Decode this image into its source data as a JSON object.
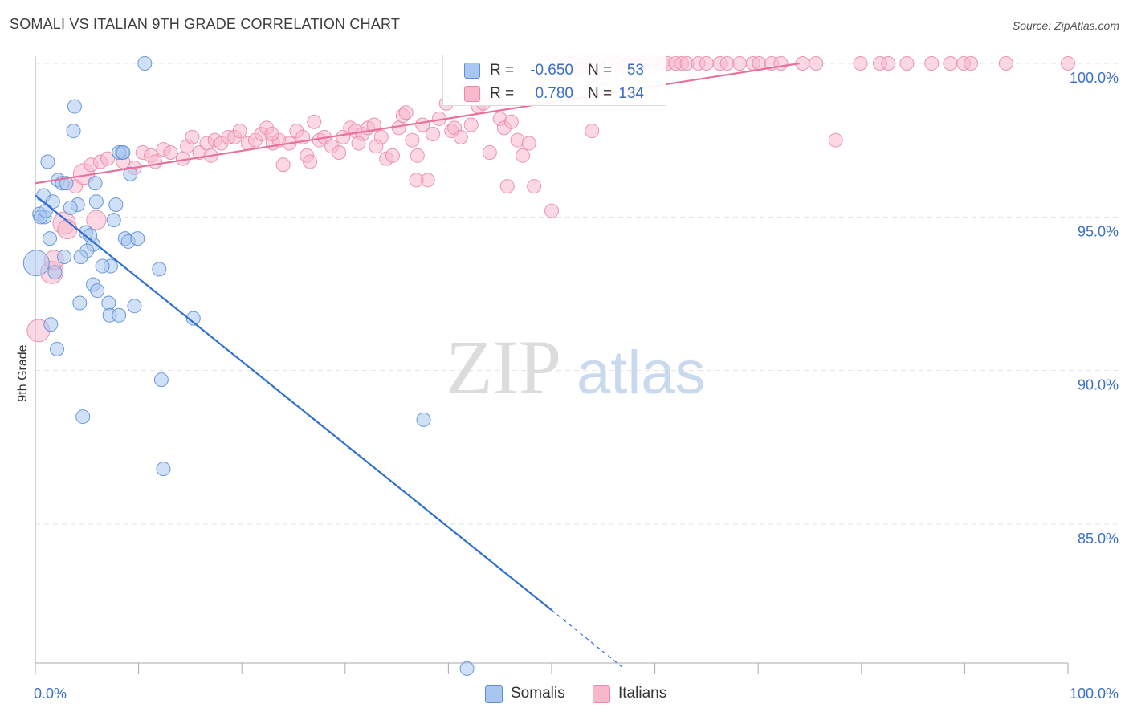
{
  "title": "SOMALI VS ITALIAN 9TH GRADE CORRELATION CHART",
  "source": "Source: ZipAtlas.com",
  "watermark": {
    "zip": "ZIP",
    "atlas": "atlas"
  },
  "legend": {
    "rows": [
      {
        "r_label": "R =",
        "r_value": "-0.650",
        "n_label": "N =",
        "n_value": "53"
      },
      {
        "r_label": "R =",
        "r_value": "0.780",
        "n_label": "N =",
        "n_value": "134"
      }
    ],
    "bottom": [
      {
        "label": "Somalis"
      },
      {
        "label": "Italians"
      }
    ]
  },
  "colors": {
    "somali_fill": "#a9c6f0",
    "somali_stroke": "#5b8fd6",
    "somali_line": "#2f6fd0",
    "italian_fill": "#f7b8cc",
    "italian_stroke": "#e98aa8",
    "italian_line": "#e8709a",
    "tick_label": "#3b6fc4",
    "grid": "#e2e2e2"
  },
  "chart_data": {
    "type": "scatter",
    "title": "SOMALI VS ITALIAN 9TH GRADE CORRELATION CHART",
    "xlabel": "",
    "ylabel": "9th Grade",
    "xlim": [
      0,
      100
    ],
    "ylim": [
      80.3,
      100.6
    ],
    "x_tick_labels": [
      "0.0%",
      "100.0%"
    ],
    "y_ticks": [
      85,
      90,
      95,
      100
    ],
    "y_tick_labels": [
      "85.0%",
      "90.0%",
      "95.0%",
      "100.0%"
    ],
    "grid": true,
    "legend_position": "top-center",
    "series": [
      {
        "name": "Somalis",
        "r": -0.65,
        "n": 53,
        "trend": {
          "x0": 0,
          "y0": 95.7,
          "x1": 50,
          "y1": 82.2,
          "dashed_to_x": 57,
          "dashed_to_y": 80.3
        },
        "points": [
          [
            10.6,
            100
          ],
          [
            3.8,
            98.6
          ],
          [
            3.7,
            97.8
          ],
          [
            1.2,
            96.8
          ],
          [
            8.4,
            97.1
          ],
          [
            8.1,
            97.1
          ],
          [
            2.2,
            96.2
          ],
          [
            2.6,
            96.1
          ],
          [
            5.8,
            96.1
          ],
          [
            9.2,
            96.4
          ],
          [
            0.8,
            95.7
          ],
          [
            1.7,
            95.5
          ],
          [
            4.1,
            95.4
          ],
          [
            5.9,
            95.5
          ],
          [
            7.8,
            95.4
          ],
          [
            0.4,
            95.1
          ],
          [
            0.9,
            95.0
          ],
          [
            3.4,
            95.3
          ],
          [
            7.6,
            94.9
          ],
          [
            1.4,
            94.3
          ],
          [
            4.9,
            94.5
          ],
          [
            5.3,
            94.4
          ],
          [
            8.7,
            94.3
          ],
          [
            9.0,
            94.2
          ],
          [
            9.9,
            94.3
          ],
          [
            5.6,
            94.1
          ],
          [
            5.0,
            93.9
          ],
          [
            2.8,
            93.7
          ],
          [
            4.4,
            93.7
          ],
          [
            0.1,
            93.5
          ],
          [
            7.3,
            93.4
          ],
          [
            12.0,
            93.3
          ],
          [
            1.9,
            93.2
          ],
          [
            5.6,
            92.8
          ],
          [
            6.0,
            92.6
          ],
          [
            4.3,
            92.2
          ],
          [
            7.1,
            92.2
          ],
          [
            9.6,
            92.1
          ],
          [
            7.2,
            91.8
          ],
          [
            8.1,
            91.8
          ],
          [
            1.5,
            91.5
          ],
          [
            15.3,
            91.7
          ],
          [
            2.1,
            90.7
          ],
          [
            12.2,
            89.7
          ],
          [
            4.6,
            88.5
          ],
          [
            37.6,
            88.4
          ],
          [
            12.4,
            86.8
          ],
          [
            41.8,
            80.3
          ],
          [
            0.5,
            95.0
          ],
          [
            3.0,
            96.1
          ],
          [
            6.5,
            93.4
          ],
          [
            8.5,
            97.1
          ],
          [
            1.0,
            95.2
          ]
        ]
      },
      {
        "name": "Italians",
        "r": 0.78,
        "n": 134,
        "trend": {
          "x0": 0,
          "y0": 96.1,
          "x1": 74,
          "y1": 100
        },
        "points": [
          [
            0.3,
            91.3
          ],
          [
            1.6,
            93.2
          ],
          [
            1.8,
            93.6
          ],
          [
            2.8,
            94.8
          ],
          [
            3.1,
            94.6
          ],
          [
            5.9,
            94.9
          ],
          [
            3.9,
            96.0
          ],
          [
            4.7,
            96.4
          ],
          [
            5.4,
            96.7
          ],
          [
            6.3,
            96.8
          ],
          [
            7.0,
            96.9
          ],
          [
            8.5,
            96.8
          ],
          [
            9.6,
            96.6
          ],
          [
            10.4,
            97.1
          ],
          [
            11.2,
            97.0
          ],
          [
            12.4,
            97.2
          ],
          [
            13.1,
            97.1
          ],
          [
            14.3,
            96.9
          ],
          [
            14.7,
            97.3
          ],
          [
            15.2,
            97.6
          ],
          [
            15.9,
            97.1
          ],
          [
            16.6,
            97.4
          ],
          [
            17.4,
            97.5
          ],
          [
            18.0,
            97.4
          ],
          [
            18.7,
            97.6
          ],
          [
            19.3,
            97.6
          ],
          [
            19.8,
            97.8
          ],
          [
            20.6,
            97.4
          ],
          [
            21.3,
            97.5
          ],
          [
            21.9,
            97.7
          ],
          [
            22.4,
            97.9
          ],
          [
            23.0,
            97.4
          ],
          [
            23.6,
            97.5
          ],
          [
            24.0,
            96.7
          ],
          [
            24.6,
            97.4
          ],
          [
            25.3,
            97.8
          ],
          [
            25.9,
            97.6
          ],
          [
            26.3,
            97.0
          ],
          [
            27.0,
            98.1
          ],
          [
            27.5,
            97.5
          ],
          [
            28.0,
            97.6
          ],
          [
            28.7,
            97.3
          ],
          [
            29.4,
            97.1
          ],
          [
            29.8,
            97.6
          ],
          [
            30.5,
            97.9
          ],
          [
            31.0,
            97.8
          ],
          [
            31.7,
            97.7
          ],
          [
            32.2,
            97.9
          ],
          [
            32.8,
            98.0
          ],
          [
            33.5,
            97.6
          ],
          [
            34.0,
            96.9
          ],
          [
            34.6,
            97.0
          ],
          [
            35.2,
            97.9
          ],
          [
            35.6,
            98.3
          ],
          [
            35.9,
            98.4
          ],
          [
            36.5,
            97.5
          ],
          [
            37.0,
            97.0
          ],
          [
            37.5,
            98.0
          ],
          [
            38.0,
            96.2
          ],
          [
            38.5,
            97.7
          ],
          [
            39.1,
            98.2
          ],
          [
            39.8,
            98.7
          ],
          [
            40.3,
            97.8
          ],
          [
            40.6,
            97.9
          ],
          [
            41.2,
            97.6
          ],
          [
            41.8,
            99.2
          ],
          [
            42.2,
            98.0
          ],
          [
            42.9,
            98.6
          ],
          [
            43.4,
            98.7
          ],
          [
            44.0,
            97.1
          ],
          [
            44.6,
            99.0
          ],
          [
            45.0,
            98.2
          ],
          [
            45.4,
            97.9
          ],
          [
            46.1,
            98.1
          ],
          [
            46.7,
            97.5
          ],
          [
            47.2,
            97.0
          ],
          [
            47.8,
            97.4
          ],
          [
            48.3,
            96.0
          ],
          [
            48.6,
            99.4
          ],
          [
            49.2,
            100
          ],
          [
            50.0,
            95.2
          ],
          [
            50.3,
            100
          ],
          [
            51.0,
            99.6
          ],
          [
            51.6,
            100
          ],
          [
            52.2,
            100
          ],
          [
            52.7,
            99.8
          ],
          [
            53.4,
            100
          ],
          [
            53.9,
            97.8
          ],
          [
            54.3,
            100
          ],
          [
            55.0,
            99.5
          ],
          [
            55.6,
            100
          ],
          [
            56.3,
            100
          ],
          [
            57.0,
            99.9
          ],
          [
            57.6,
            100
          ],
          [
            58.2,
            100
          ],
          [
            58.9,
            100
          ],
          [
            59.4,
            100
          ],
          [
            60.2,
            100
          ],
          [
            60.7,
            100
          ],
          [
            61.2,
            100
          ],
          [
            62.0,
            100
          ],
          [
            62.6,
            100
          ],
          [
            63.1,
            100
          ],
          [
            64.2,
            100
          ],
          [
            65.0,
            100
          ],
          [
            66.3,
            100
          ],
          [
            67.0,
            100
          ],
          [
            68.2,
            100
          ],
          [
            69.5,
            100
          ],
          [
            70.1,
            100
          ],
          [
            71.3,
            100
          ],
          [
            72.2,
            100
          ],
          [
            74.3,
            100
          ],
          [
            75.6,
            100
          ],
          [
            77.5,
            97.5
          ],
          [
            79.9,
            100
          ],
          [
            81.8,
            100
          ],
          [
            82.6,
            100
          ],
          [
            84.4,
            100
          ],
          [
            86.8,
            100
          ],
          [
            88.6,
            100
          ],
          [
            89.9,
            100
          ],
          [
            90.6,
            100
          ],
          [
            94.0,
            100
          ],
          [
            100,
            100
          ],
          [
            26.6,
            96.8
          ],
          [
            33.0,
            97.3
          ],
          [
            36.9,
            96.2
          ],
          [
            43.0,
            98.9
          ],
          [
            45.7,
            96.0
          ],
          [
            31.3,
            97.4
          ],
          [
            22.9,
            97.7
          ],
          [
            17.0,
            97.0
          ],
          [
            11.6,
            96.8
          ]
        ]
      }
    ]
  }
}
